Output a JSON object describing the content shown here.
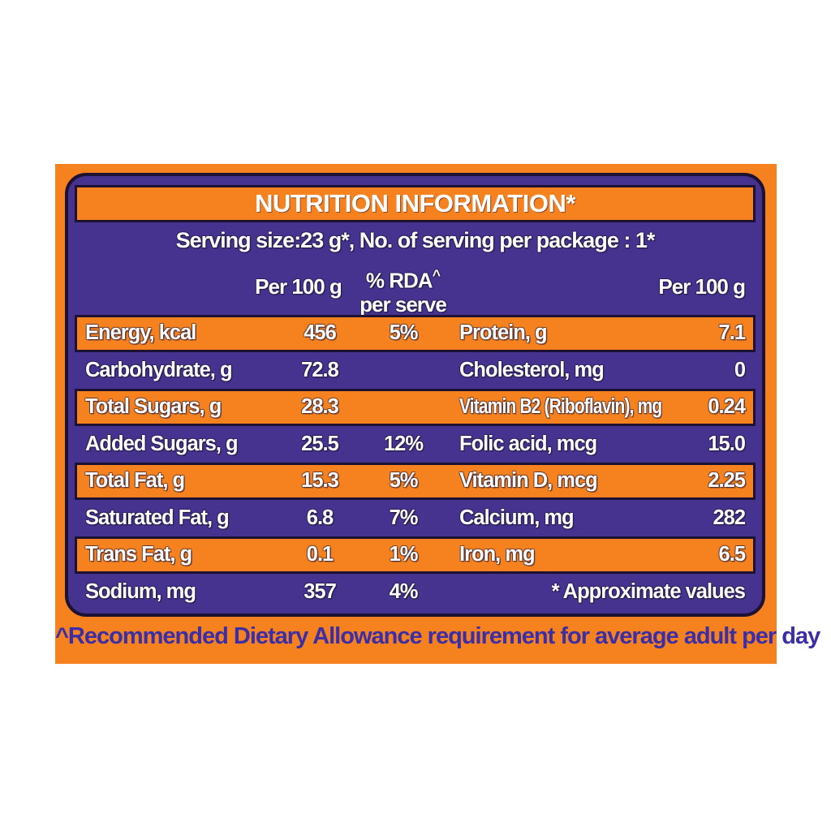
{
  "label": {
    "title": "NUTRITION INFORMATION*",
    "serving_line": "Serving size:23 g*, No. of serving per package : 1*",
    "columns": {
      "per_100g_left": "Per 100 g",
      "rda_line1": "% RDA",
      "rda_sup": "^",
      "rda_line2": "per serve",
      "per_100g_right": "Per 100 g"
    },
    "rows": [
      {
        "left_label": "Energy, kcal",
        "per_100g": "456",
        "rda_per_serve": "5%",
        "right_label": "Protein, g",
        "right_per_100g": "7.1"
      },
      {
        "left_label": "Carbohydrate, g",
        "per_100g": "72.8",
        "rda_per_serve": "",
        "right_label": "Cholesterol, mg",
        "right_per_100g": "0"
      },
      {
        "left_label": "Total Sugars, g",
        "per_100g": "28.3",
        "rda_per_serve": "",
        "right_label": "Vitamin B2 (Riboflavin), mg",
        "right_per_100g": "0.24"
      },
      {
        "left_label": "Added Sugars, g",
        "per_100g": "25.5",
        "rda_per_serve": "12%",
        "right_label": "Folic acid, mcg",
        "right_per_100g": "15.0"
      },
      {
        "left_label": "Total Fat, g",
        "per_100g": "15.3",
        "rda_per_serve": "5%",
        "right_label": "Vitamin D, mcg",
        "right_per_100g": "2.25"
      },
      {
        "left_label": "Saturated Fat, g",
        "per_100g": "6.8",
        "rda_per_serve": "7%",
        "right_label": "Calcium, mg",
        "right_per_100g": "282"
      },
      {
        "left_label": "Trans Fat, g",
        "per_100g": "0.1",
        "rda_per_serve": "1%",
        "right_label": "Iron, mg",
        "right_per_100g": "6.5"
      },
      {
        "left_label": "Sodium, mg",
        "per_100g": "357",
        "rda_per_serve": "4%",
        "right_note": "* Approximate values"
      }
    ],
    "footnote": "^Recommended Dietary Allowance requirement for average adult per day",
    "colors": {
      "orange": "#F5821F",
      "purple": "#463390",
      "outline": "#1D1233",
      "footnote_text": "#3B2EA6",
      "text": "#FFFFFF"
    }
  }
}
